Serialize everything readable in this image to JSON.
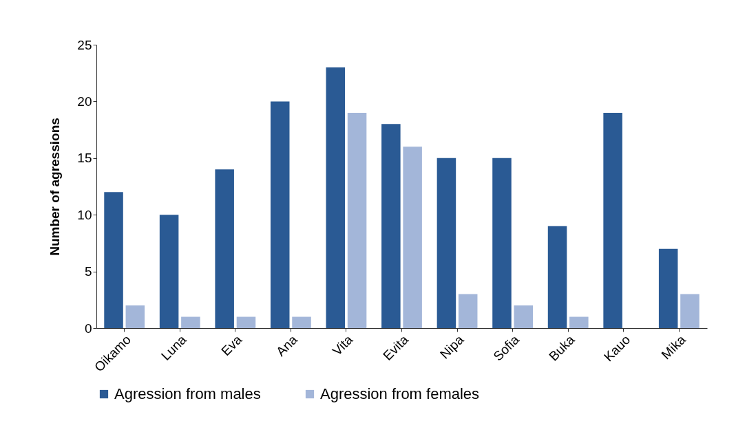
{
  "chart_data": {
    "type": "bar",
    "ylabel": "Number of agressions",
    "categories": [
      "Oikamo",
      "Luna",
      "Eva",
      "Ana",
      "Vita",
      "Evita",
      "Nipa",
      "Sofia",
      "Buka",
      "Kauo",
      "Mika"
    ],
    "series": [
      {
        "name": "Agression from males",
        "color": "#2a5a94",
        "values": [
          12,
          10,
          14,
          20,
          23,
          18,
          15,
          15,
          9,
          19,
          7
        ]
      },
      {
        "name": "Agression from females",
        "color": "#a3b6d9",
        "values": [
          2,
          1,
          1,
          1,
          19,
          16,
          3,
          2,
          1,
          null,
          3
        ]
      }
    ],
    "ylim": [
      0,
      25
    ],
    "yticks": [
      0,
      5,
      10,
      15,
      20,
      25
    ],
    "grid": false,
    "legend": "bottom"
  }
}
